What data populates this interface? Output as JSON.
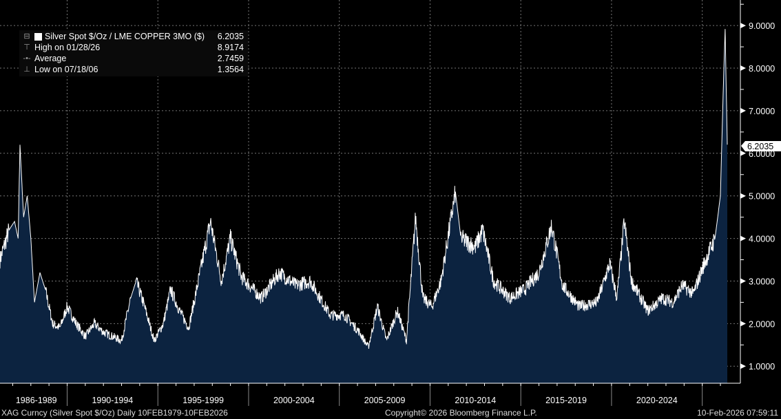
{
  "chart_data": {
    "type": "area",
    "title": "Silver Spot $/Oz / LME COPPER 3MO ($)",
    "ylim": [
      0.6,
      9.6
    ],
    "xlim": [
      1986.3,
      2027.1
    ],
    "y_ticks": [
      "1.0000",
      "2.0000",
      "3.0000",
      "4.0000",
      "5.0000",
      "6.0000",
      "7.0000",
      "8.0000",
      "9.0000"
    ],
    "y_tick_values": [
      1,
      2,
      3,
      4,
      5,
      6,
      7,
      8,
      9
    ],
    "x_period_labels": [
      "1986-1989",
      "1990-1994",
      "1995-1999",
      "2000-2004",
      "2005-2009",
      "2010-2014",
      "2015-2019",
      "2020-2024"
    ],
    "x_dividers": [
      1990,
      1995,
      2000,
      2005,
      2010,
      2015,
      2020,
      2025
    ],
    "last_value_label": "6.2035",
    "last_value": 6.2035,
    "grid": true,
    "line_color": "#ffffff",
    "fill_color": "#0c2340",
    "series": [
      {
        "name": "Silver Spot $/Oz / LME COPPER 3MO ($)",
        "x": [
          1986.3,
          1986.8,
          1987.1,
          1987.3,
          1987.4,
          1987.6,
          1987.8,
          1988.0,
          1988.2,
          1988.5,
          1988.8,
          1989.2,
          1989.6,
          1990.0,
          1990.5,
          1991.0,
          1991.5,
          1992.0,
          1992.5,
          1993.0,
          1993.5,
          1993.8,
          1994.2,
          1994.8,
          1995.3,
          1995.7,
          1996.2,
          1996.7,
          1997.9,
          1998.5,
          1999.0,
          1999.6,
          2000.7,
          2001.7,
          2002.6,
          2003.4,
          2004.5,
          2005.3,
          2006.1,
          2006.6,
          2007.1,
          2007.6,
          2008.2,
          2008.7,
          2009.2,
          2009.6,
          2010.1,
          2010.6,
          2011.4,
          2011.7,
          2012.5,
          2012.9,
          2013.5,
          2014.4,
          2015.2,
          2016.0,
          2016.7,
          2017.3,
          2018.2,
          2019.2,
          2019.9,
          2020.3,
          2020.7,
          2021.1,
          2022.0,
          2022.8,
          2023.4,
          2023.9,
          2024.5,
          2025.1,
          2025.7,
          2026.0,
          2026.15,
          2026.26,
          2026.38
        ],
        "y": [
          3.5,
          4.2,
          4.4,
          4.0,
          6.2,
          4.5,
          5.0,
          4.0,
          2.5,
          3.2,
          2.8,
          2.0,
          1.9,
          2.4,
          2.0,
          1.7,
          2.0,
          1.8,
          1.7,
          1.6,
          2.6,
          3.0,
          2.5,
          1.6,
          2.0,
          2.8,
          2.3,
          1.9,
          4.4,
          3.0,
          4.0,
          3.1,
          2.6,
          3.2,
          2.9,
          3.0,
          2.2,
          2.2,
          1.8,
          1.45,
          2.4,
          1.6,
          2.3,
          1.6,
          4.5,
          2.6,
          2.4,
          3.0,
          5.1,
          4.0,
          3.8,
          4.2,
          3.0,
          2.6,
          2.8,
          3.2,
          4.3,
          2.9,
          2.4,
          2.5,
          3.4,
          2.6,
          4.4,
          3.0,
          2.3,
          2.6,
          2.5,
          2.9,
          2.7,
          3.4,
          4.0,
          5.0,
          7.4,
          8.9174,
          6.2035
        ]
      }
    ]
  },
  "legend": {
    "title": "Silver Spot $/Oz / LME COPPER 3MO ($)",
    "title_value": "6.2035",
    "high_label": "High on 01/28/26",
    "high_value": "8.9174",
    "avg_label": "Average",
    "avg_value": "2.7459",
    "low_label": "Low on 07/18/06",
    "low_value": "1.3564"
  },
  "footer": {
    "left": "XAG Curncy (Silver Spot  $/Oz) Daily 10FEB1979-10FEB2026",
    "center": "Copyright© 2026 Bloomberg Finance L.P.",
    "right": "10-Feb-2026 07:59:11"
  }
}
